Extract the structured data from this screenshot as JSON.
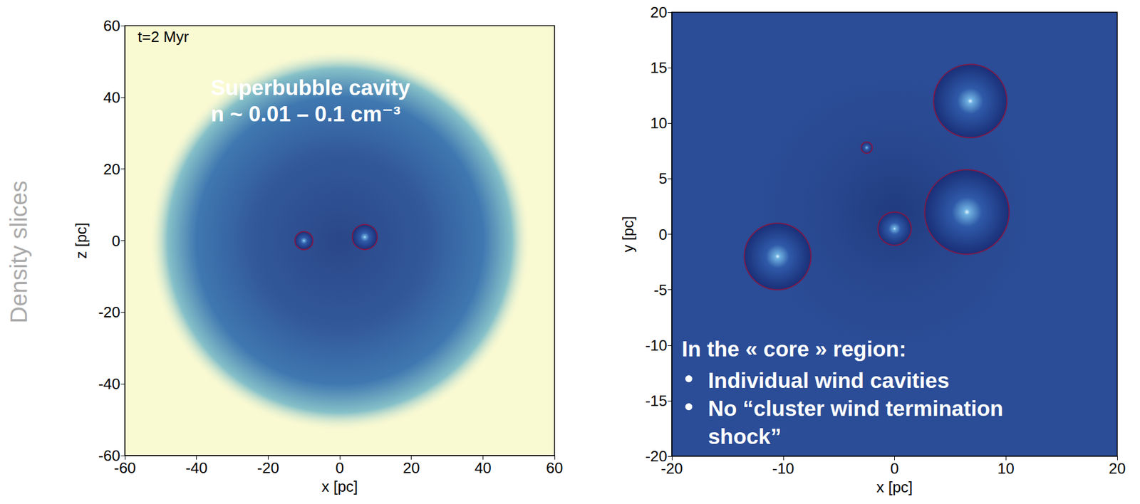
{
  "chart_data": [
    {
      "type": "density_slice",
      "side_label": "Density slices",
      "annotations": [
        "t=2 Myr",
        "Superbubble cavity",
        "n ~ 0.01 – 0.1 cm⁻³"
      ],
      "xlabel": "x [pc]",
      "ylabel": "z [pc]",
      "xlim": [
        -60,
        60
      ],
      "ylim": [
        -60,
        60
      ],
      "xticks": [
        -60,
        -40,
        -20,
        0,
        20,
        40,
        60
      ],
      "yticks": [
        -60,
        -40,
        -20,
        0,
        20,
        40,
        60
      ],
      "cavities": [
        {
          "x": -10,
          "y": 0,
          "r": 2.5
        },
        {
          "x": 7,
          "y": 1,
          "r": 3.5
        }
      ]
    },
    {
      "type": "density_slice",
      "annotations": [
        "In the « core » region:"
      ],
      "bullets": [
        "Individual wind cavities",
        "No “cluster wind termination shock”"
      ],
      "xlabel": "x [pc]",
      "ylabel": "y [pc]",
      "xlim": [
        -20,
        20
      ],
      "ylim": [
        -20,
        20
      ],
      "xticks": [
        -20,
        -10,
        0,
        10,
        20
      ],
      "yticks": [
        -20,
        -15,
        -10,
        -5,
        0,
        5,
        10,
        15,
        20
      ],
      "cavities": [
        {
          "x": -10.5,
          "y": -2,
          "r": 3
        },
        {
          "x": 6.8,
          "y": 12,
          "r": 3.3
        },
        {
          "x": 6.5,
          "y": 2,
          "r": 3.8
        },
        {
          "x": 0,
          "y": 0.5,
          "r": 1.5
        },
        {
          "x": -2.5,
          "y": 7.8,
          "r": 0.5
        }
      ]
    }
  ]
}
